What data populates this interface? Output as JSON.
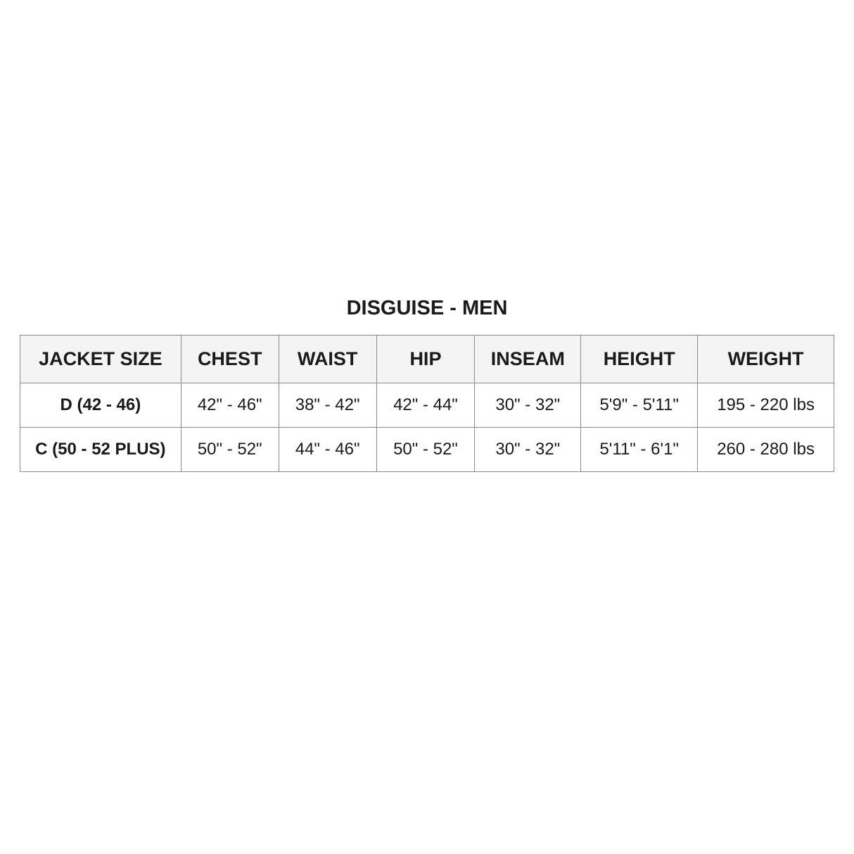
{
  "title": "DISGUISE - MEN",
  "table": {
    "headers": [
      "JACKET SIZE",
      "CHEST",
      "WAIST",
      "HIP",
      "INSEAM",
      "HEIGHT",
      "WEIGHT"
    ],
    "rows": [
      [
        "D (42 - 46)",
        "42\" - 46\"",
        "38\" - 42\"",
        "42\" - 44\"",
        "30\" - 32\"",
        "5'9\" - 5'11\"",
        "195 - 220 lbs"
      ],
      [
        "C (50 - 52 PLUS)",
        "50\" - 52\"",
        "44\" - 46\"",
        "50\" - 52\"",
        "30\" - 32\"",
        "5'11\" - 6'1\"",
        "260 - 280 lbs"
      ]
    ]
  },
  "colors": {
    "header_bg": "#f4f4f4",
    "border": "#8a8a8a",
    "text": "#1a1a1a"
  }
}
